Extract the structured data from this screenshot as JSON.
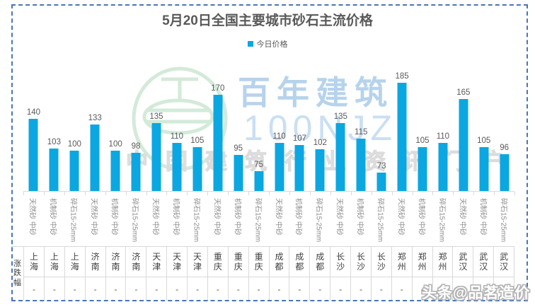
{
  "chart_data": {
    "type": "bar",
    "title": "5月20日全国主要城市砂石主流价格",
    "xlabel": "",
    "ylabel": "",
    "ylim": [
      50,
      200
    ],
    "grid": false,
    "legend_position": "top-center",
    "bar_color": "#0ba7e2",
    "categories": [
      {
        "city": "上海",
        "spec": "天然砂 中砂"
      },
      {
        "city": "上海",
        "spec": "机制砂 中砂"
      },
      {
        "city": "上海",
        "spec": "碎石15-25mm"
      },
      {
        "city": "济南",
        "spec": "天然砂 中砂"
      },
      {
        "city": "济南",
        "spec": "机制砂 中砂"
      },
      {
        "city": "济南",
        "spec": "碎石15-25mm"
      },
      {
        "city": "天津",
        "spec": "天然砂 中砂"
      },
      {
        "city": "天津",
        "spec": "机制砂 中砂"
      },
      {
        "city": "天津",
        "spec": "碎石15-25mm"
      },
      {
        "city": "重庆",
        "spec": "天然砂 中砂"
      },
      {
        "city": "重庆",
        "spec": "机制砂 中砂"
      },
      {
        "city": "重庆",
        "spec": "碎石15-25mm"
      },
      {
        "city": "成都",
        "spec": "天然砂 中砂"
      },
      {
        "city": "成都",
        "spec": "机制砂 中砂"
      },
      {
        "city": "成都",
        "spec": "碎石15-25mm"
      },
      {
        "city": "长沙",
        "spec": "天然砂 中砂"
      },
      {
        "city": "长沙",
        "spec": "机制砂 中砂"
      },
      {
        "city": "长沙",
        "spec": "碎石15-25mm"
      },
      {
        "city": "郑州",
        "spec": "天然砂 中砂"
      },
      {
        "city": "郑州",
        "spec": "机制砂 中砂"
      },
      {
        "city": "郑州",
        "spec": "碎石15-25mm"
      },
      {
        "city": "武汉",
        "spec": "天然砂 中砂"
      },
      {
        "city": "武汉",
        "spec": "机制砂 中砂"
      },
      {
        "city": "武汉",
        "spec": "碎石15-25mm"
      }
    ],
    "series": [
      {
        "name": "今日价格",
        "values": [
          140,
          103,
          100,
          133,
          100,
          98,
          135,
          110,
          105,
          170,
          95,
          75,
          110,
          107,
          102,
          135,
          115,
          73,
          185,
          105,
          110,
          165,
          105,
          96
        ]
      }
    ]
  },
  "table": {
    "row_header": "涨跌幅",
    "changes": [
      "-",
      "-",
      "-",
      "-",
      "-",
      "-",
      "-",
      "-",
      "-",
      "-",
      "-",
      "-",
      "-",
      "-",
      "-",
      "-",
      "-",
      "-",
      "-",
      "-",
      "-",
      "-",
      "-",
      "-"
    ]
  },
  "watermarks": {
    "brand_cn": "百年建筑",
    "brand_code": "100NJZ",
    "tagline": "中国建筑行业资讯门户",
    "credit": "头条@品茗造价"
  },
  "colors": {
    "bar": "#0ba7e2",
    "selection_frame": "#4b74b8",
    "title_text": "#595959",
    "axis_text": "#8c8c8c",
    "grid_line": "#d9d9d9",
    "brand_blue": "#b7d3ec",
    "logo_green": "#cfe8d5"
  }
}
